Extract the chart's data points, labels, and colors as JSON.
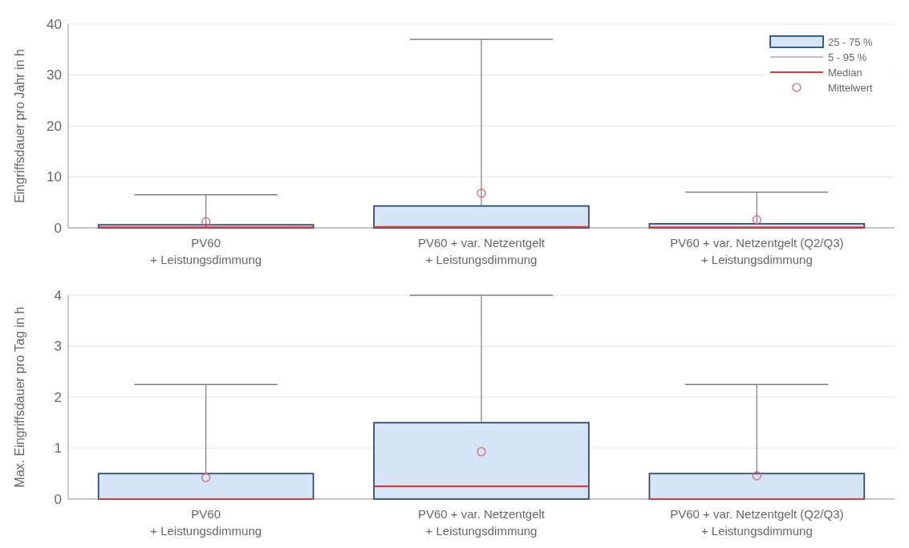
{
  "chart_data": [
    {
      "type": "box",
      "ylabel": "Eingriffsdauer pro Jahr in h",
      "categories": [
        "PV60\n+ Leistungsdimmung",
        "PV60 + var. Netzentgelt\n+ Leistungsdimmung",
        "PV60 + var. Netzentgelt (Q2/Q3)\n+ Leistungsdimmung"
      ],
      "ylim": [
        0,
        40
      ],
      "yticks": [
        0,
        10,
        20,
        30,
        40
      ],
      "grid": "y",
      "legend": "top right",
      "series": [
        {
          "name": "25 - 75 %",
          "color": "#d5e5f5",
          "boxes": [
            {
              "q1": 0,
              "median": 0.1,
              "q3": 0.6,
              "high": 6.5,
              "mean": 1.2
            },
            {
              "q1": 0,
              "median": 0.2,
              "q3": 4.3,
              "high": 37,
              "mean": 6.8
            },
            {
              "q1": 0,
              "median": 0.1,
              "q3": 0.8,
              "high": 7,
              "mean": 1.6
            }
          ]
        }
      ],
      "annotations": [
        "5 - 95 %",
        "Median",
        "Mittelwert"
      ]
    },
    {
      "type": "box",
      "ylabel": "Max. Eingriffsdauer pro Tag in h",
      "categories": [
        "PV60\n+ Leistungsdimmung",
        "PV60 + var. Netzentgelt\n+ Leistungsdimmung",
        "PV60 + var. Netzentgelt (Q2/Q3)\n+ Leistungsdimmung"
      ],
      "ylim": [
        0,
        4
      ],
      "yticks": [
        0,
        1,
        2,
        3,
        4
      ],
      "grid": "y",
      "series": [
        {
          "color": "#d5e5f5",
          "boxes": [
            {
              "q1": 0,
              "median": 0,
              "q3": 0.5,
              "high": 2.25,
              "mean": 0.42
            },
            {
              "q1": 0,
              "median": 0.25,
              "q3": 1.5,
              "high": 4,
              "mean": 0.93
            },
            {
              "q1": 0,
              "median": 0,
              "q3": 0.5,
              "high": 2.25,
              "mean": 0.46
            }
          ]
        }
      ]
    }
  ]
}
